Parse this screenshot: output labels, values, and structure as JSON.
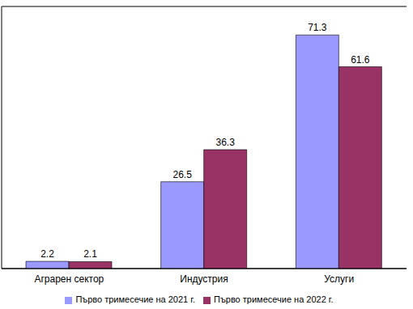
{
  "chart_data": {
    "type": "bar",
    "categories": [
      "Аграрен сектор",
      "Индустрия",
      "Услуги"
    ],
    "series": [
      {
        "name": "Първо тримесечие на 2021 г.",
        "color": "#9999ff",
        "values": [
          2.2,
          26.5,
          71.3
        ]
      },
      {
        "name": "Първо тримесечие на 2022 г.",
        "color": "#993366",
        "values": [
          2.1,
          36.3,
          61.6
        ]
      }
    ],
    "ylim": [
      0,
      80
    ],
    "yticks": [
      0,
      10,
      20,
      30,
      40,
      50,
      60,
      70,
      80
    ],
    "grid": true,
    "data_labels": true,
    "tick_labels": "x",
    "legend": "bottom"
  }
}
